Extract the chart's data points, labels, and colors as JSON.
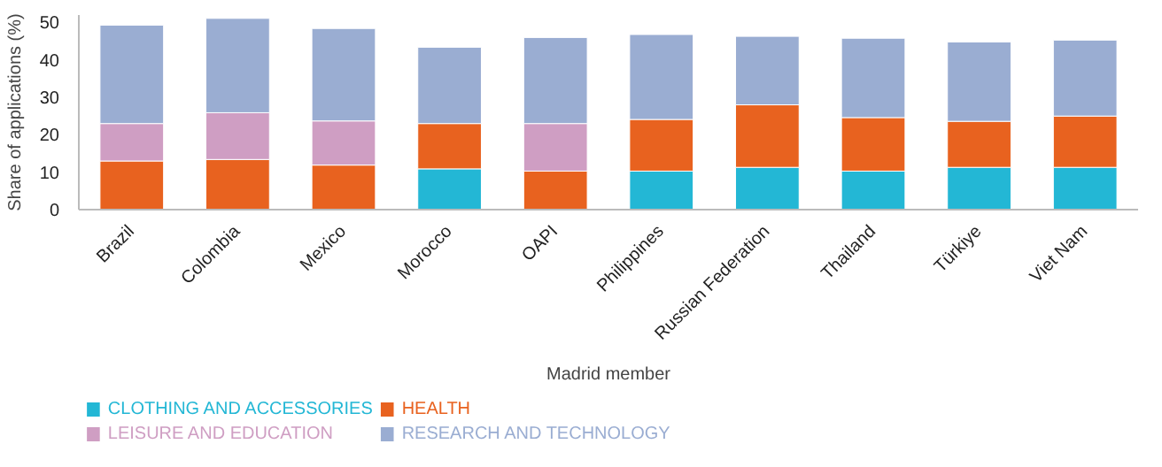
{
  "chart_data": {
    "type": "bar",
    "stacked": true,
    "xlabel": "Madrid member",
    "ylabel": "Share of applications (%)",
    "categories": [
      "Brazil",
      "Colombia",
      "Mexico",
      "Morocco",
      "OAPI",
      "Philippines",
      "Russian Federation",
      "Thailand",
      "Türkiye",
      "Viet Nam"
    ],
    "series": [
      {
        "name": "CLOTHING AND ACCESSORIES",
        "color": "#23b7d5",
        "values": [
          null,
          null,
          null,
          10.9,
          null,
          10.3,
          11.3,
          10.3,
          11.3,
          11.3
        ]
      },
      {
        "name": "HEALTH",
        "color": "#e8621f",
        "values": [
          13.0,
          13.4,
          11.9,
          12.1,
          10.3,
          13.8,
          16.7,
          14.3,
          12.3,
          13.7
        ]
      },
      {
        "name": "LEISURE AND EDUCATION",
        "color": "#cf9ec3",
        "values": [
          10.0,
          12.5,
          11.8,
          null,
          12.7,
          null,
          null,
          null,
          null,
          null
        ]
      },
      {
        "name": "RESEARCH AND TECHNOLOGY",
        "color": "#9aadd2",
        "values": [
          26.3,
          25.2,
          24.7,
          20.4,
          23.0,
          22.7,
          18.3,
          21.2,
          21.2,
          20.3
        ]
      }
    ],
    "ylim": [
      0,
      52
    ],
    "yticks": [
      0,
      10,
      20,
      30,
      40,
      50
    ],
    "grid": false,
    "legend": "bottom"
  }
}
